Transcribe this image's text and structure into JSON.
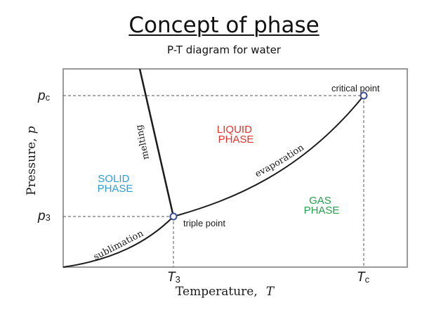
{
  "header": {
    "title": "Concept of phase",
    "subtitle": "P-T diagram for water"
  },
  "diagram": {
    "axes": {
      "x_label": "Temperature,",
      "x_symbol": "T",
      "y_label": "Pressure,",
      "y_symbol": "p",
      "x_ticks": [
        {
          "main": "T",
          "sub": "3"
        },
        {
          "main": "T",
          "sub": "c"
        }
      ],
      "y_ticks": [
        {
          "main": "p",
          "sub": "c"
        },
        {
          "main": "p",
          "sub": "3"
        }
      ]
    },
    "regions": {
      "solid": [
        "SOLID",
        "PHASE"
      ],
      "liquid": [
        "LIQUID",
        "PHASE"
      ],
      "gas": [
        "GAS",
        "PHASE"
      ]
    },
    "curves": {
      "melting": "melting",
      "sublimation": "sublimation",
      "evaporation": "evaporation"
    },
    "points": {
      "critical": "critical point",
      "triple": "triple point"
    },
    "colors": {
      "solid": "#2a9fd6",
      "liquid": "#e8312a",
      "gas": "#22a24a",
      "curve": "#1a1a1a",
      "point": "#3a4a9a"
    }
  }
}
